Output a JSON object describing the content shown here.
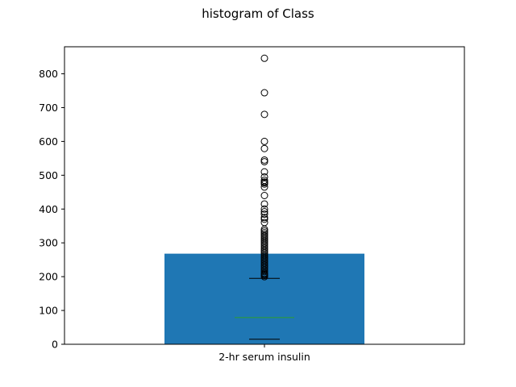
{
  "chart_data": {
    "type": "bar",
    "title": "histogram of Class",
    "xlabel": "",
    "ylabel": "",
    "categories": [
      "2-hr serum insulin"
    ],
    "values": [
      268
    ],
    "ylim": [
      0,
      880
    ],
    "yticks": [
      0,
      100,
      200,
      300,
      400,
      500,
      600,
      700,
      800
    ],
    "grid": false,
    "bar_color": "#1f77b4",
    "box_overlay": {
      "lower_whisker": 15,
      "median": 79,
      "upper_whisker": 195,
      "median_color": "#2ca02c",
      "outliers": [
        200,
        204,
        207,
        210,
        215,
        220,
        225,
        230,
        235,
        240,
        245,
        250,
        255,
        260,
        265,
        270,
        275,
        280,
        285,
        290,
        295,
        300,
        305,
        310,
        315,
        320,
        325,
        330,
        335,
        340,
        360,
        370,
        375,
        385,
        392,
        400,
        415,
        440,
        465,
        474,
        478,
        480,
        485,
        495,
        510,
        540,
        545,
        579,
        600,
        680,
        744,
        846
      ]
    }
  }
}
